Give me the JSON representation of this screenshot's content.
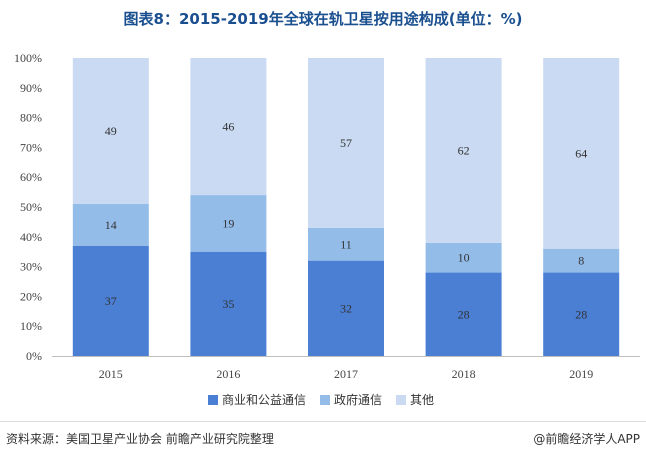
{
  "chart_data": {
    "type": "bar",
    "stacked": true,
    "title": "图表8：2015-2019年全球在轨卫星按用途构成(单位：%)",
    "categories": [
      "2015",
      "2016",
      "2017",
      "2018",
      "2019"
    ],
    "series": [
      {
        "name": "商业和公益通信",
        "values": [
          37,
          35,
          32,
          28,
          28
        ],
        "color": "#4a7fd4"
      },
      {
        "name": "政府通信",
        "values": [
          14,
          19,
          11,
          10,
          8
        ],
        "color": "#93bce9"
      },
      {
        "name": "其他",
        "values": [
          49,
          46,
          57,
          62,
          64
        ],
        "color": "#c9daf2"
      }
    ],
    "yticks": [
      "0%",
      "10%",
      "20%",
      "30%",
      "40%",
      "50%",
      "60%",
      "70%",
      "80%",
      "90%",
      "100%"
    ],
    "ylim": [
      0,
      100
    ],
    "legend_position": "bottom",
    "grid": false
  },
  "footer": {
    "source": "资料来源：美国卫星产业协会 前瞻产业研究院整理",
    "brand": "@前瞻经济学人APP"
  }
}
